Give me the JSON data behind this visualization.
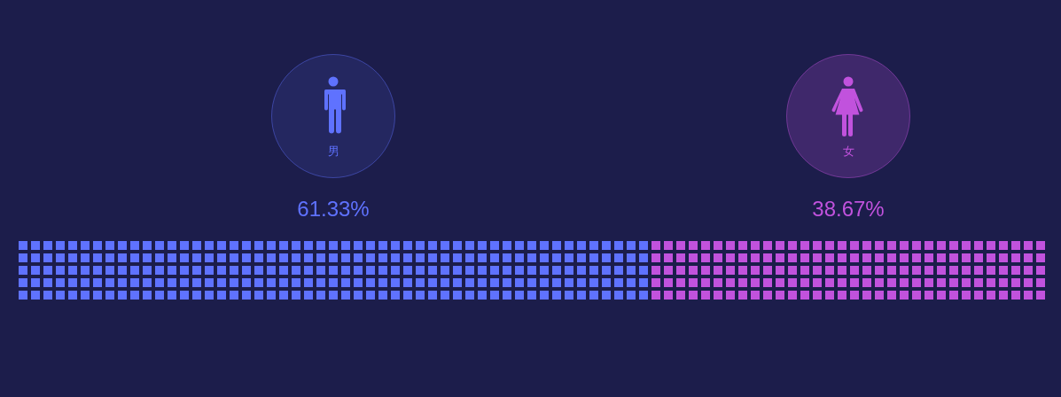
{
  "chart_data": {
    "type": "other",
    "categories": [
      "男",
      "女"
    ],
    "values": [
      61.33,
      38.67
    ],
    "colors": [
      "#5f72ff",
      "#c152dd"
    ],
    "value_labels": [
      "61.33%",
      "38.67%"
    ]
  }
}
